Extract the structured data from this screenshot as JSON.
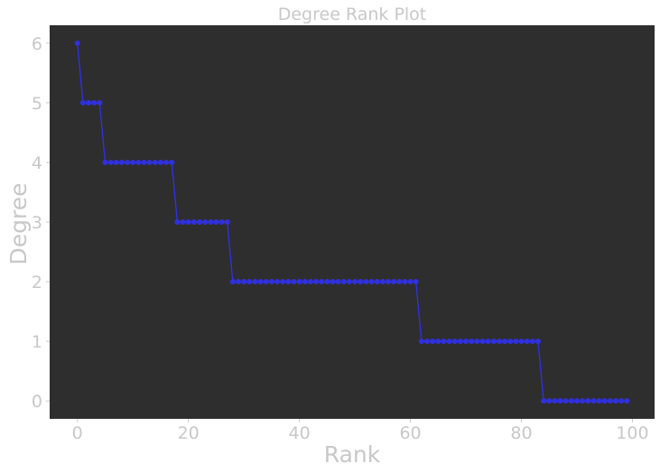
{
  "chart_data": {
    "type": "line",
    "title": "Degree Rank Plot",
    "xlabel": "Rank",
    "ylabel": "Degree",
    "xlim": [
      -5,
      104
    ],
    "ylim": [
      -0.3,
      6.3
    ],
    "xticks": [
      0,
      20,
      40,
      60,
      80,
      100
    ],
    "yticks": [
      0,
      1,
      2,
      3,
      4,
      5,
      6
    ],
    "grid": false,
    "legend": "none",
    "colors": {
      "plot_background": "#2e2e2e",
      "line": "#3030e0",
      "marker": "#3030e0",
      "text": "#c8c8c8"
    },
    "series": [
      {
        "marker": "circle",
        "x": [
          0,
          1,
          2,
          3,
          4,
          5,
          6,
          7,
          8,
          9,
          10,
          11,
          12,
          13,
          14,
          15,
          16,
          17,
          18,
          19,
          20,
          21,
          22,
          23,
          24,
          25,
          26,
          27,
          28,
          29,
          30,
          31,
          32,
          33,
          34,
          35,
          36,
          37,
          38,
          39,
          40,
          41,
          42,
          43,
          44,
          45,
          46,
          47,
          48,
          49,
          50,
          51,
          52,
          53,
          54,
          55,
          56,
          57,
          58,
          59,
          60,
          61,
          62,
          63,
          64,
          65,
          66,
          67,
          68,
          69,
          70,
          71,
          72,
          73,
          74,
          75,
          76,
          77,
          78,
          79,
          80,
          81,
          82,
          83,
          84,
          85,
          86,
          87,
          88,
          89,
          90,
          91,
          92,
          93,
          94,
          95,
          96,
          97,
          98,
          99
        ],
        "values": [
          6,
          5,
          5,
          5,
          5,
          4,
          4,
          4,
          4,
          4,
          4,
          4,
          4,
          4,
          4,
          4,
          4,
          4,
          3,
          3,
          3,
          3,
          3,
          3,
          3,
          3,
          3,
          3,
          2,
          2,
          2,
          2,
          2,
          2,
          2,
          2,
          2,
          2,
          2,
          2,
          2,
          2,
          2,
          2,
          2,
          2,
          2,
          2,
          2,
          2,
          2,
          2,
          2,
          2,
          2,
          2,
          2,
          2,
          2,
          2,
          2,
          2,
          1,
          1,
          1,
          1,
          1,
          1,
          1,
          1,
          1,
          1,
          1,
          1,
          1,
          1,
          1,
          1,
          1,
          1,
          1,
          1,
          1,
          1,
          0,
          0,
          0,
          0,
          0,
          0,
          0,
          0,
          0,
          0,
          0,
          0,
          0,
          0,
          0,
          0
        ]
      }
    ]
  }
}
